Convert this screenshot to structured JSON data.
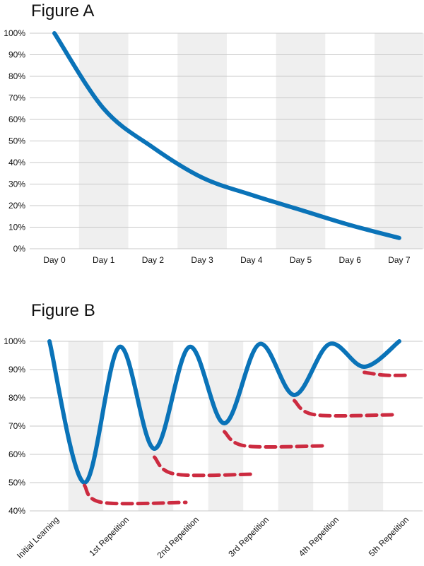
{
  "chart_data": [
    {
      "type": "line",
      "title": "Figure A",
      "categories": [
        "Day 0",
        "Day 1",
        "Day 2",
        "Day 3",
        "Day 4",
        "Day 5",
        "Day 6",
        "Day 7"
      ],
      "yticks": [
        "0%",
        "10%",
        "20%",
        "30%",
        "40%",
        "50%",
        "60%",
        "70%",
        "80%",
        "90%",
        "100%"
      ],
      "ylim": [
        0,
        100
      ],
      "grid": true,
      "series": [
        {
          "values": [
            100,
            65,
            47,
            33,
            25,
            18,
            11,
            5
          ],
          "color": "#0a73b8"
        }
      ],
      "band_color": "#efefef",
      "grid_color": "#c8c8c8"
    },
    {
      "type": "line",
      "title": "Figure B",
      "categories": [
        "Initial Learning",
        "1st Repetition",
        "2nd Repetition",
        "3rd Repetition",
        "4th Repetition",
        "5th Repetition"
      ],
      "yticks": [
        "40%",
        "50%",
        "60%",
        "70%",
        "80%",
        "90%",
        "100%"
      ],
      "ylim": [
        40,
        100
      ],
      "grid": true,
      "series": [
        {
          "style": "solid",
          "color": "#0a73b8",
          "points": [
            [
              0,
              100
            ],
            [
              0.5,
              50
            ],
            [
              1,
              98
            ],
            [
              1.5,
              62
            ],
            [
              2,
              98
            ],
            [
              2.5,
              71
            ],
            [
              3,
              99
            ],
            [
              3.5,
              81
            ],
            [
              4,
              99
            ],
            [
              4.5,
              91
            ],
            [
              5,
              100
            ]
          ]
        },
        {
          "style": "dashed",
          "color": "#cc2b40",
          "points": [
            [
              0.5,
              49
            ],
            [
              0.75,
              43
            ],
            [
              1.95,
              43
            ]
          ]
        },
        {
          "style": "dashed",
          "color": "#cc2b40",
          "points": [
            [
              1.5,
              59
            ],
            [
              1.8,
              53
            ],
            [
              2.95,
              53
            ]
          ]
        },
        {
          "style": "dashed",
          "color": "#cc2b40",
          "points": [
            [
              2.5,
              68
            ],
            [
              2.8,
              63
            ],
            [
              3.9,
              63
            ]
          ]
        },
        {
          "style": "dashed",
          "color": "#cc2b40",
          "points": [
            [
              3.5,
              79
            ],
            [
              3.8,
              74
            ],
            [
              4.9,
              74
            ]
          ]
        },
        {
          "style": "dashed",
          "color": "#cc2b40",
          "points": [
            [
              4.5,
              89
            ],
            [
              4.8,
              88
            ],
            [
              5.15,
              88
            ]
          ]
        }
      ],
      "band_color": "#efefef",
      "grid_color": "#c8c8c8"
    }
  ]
}
